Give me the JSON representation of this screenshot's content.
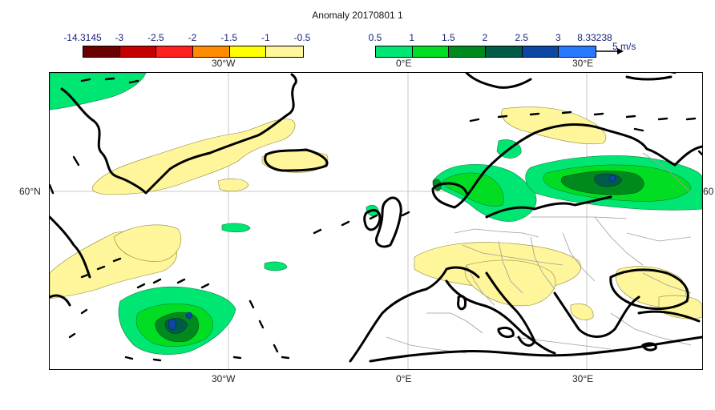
{
  "title": "Anomaly 20170801 1",
  "negative_colorbar": {
    "labels": [
      "-14.3145",
      "-3",
      "-2.5",
      "-2",
      "-1.5",
      "-1",
      "-0.5"
    ],
    "colors": [
      "#6b0000",
      "#c40000",
      "#ff2020",
      "#ff8c00",
      "#ffff00",
      "#fff59a"
    ]
  },
  "positive_colorbar": {
    "labels": [
      "0.5",
      "1",
      "1.5",
      "2",
      "2.5",
      "3",
      "8.33238"
    ],
    "colors": [
      "#00e673",
      "#00dd22",
      "#008a1e",
      "#005c46",
      "#0d47a1",
      "#2979ff"
    ]
  },
  "wind_scale": {
    "label": "5 m/s"
  },
  "axes": {
    "top_ticks": [
      "30°W",
      "0°E",
      "30°E"
    ],
    "bottom_ticks": [
      "30°W",
      "0°E",
      "30°E"
    ],
    "left_tick": "60°N",
    "right_tick": "60"
  },
  "colors": {
    "coast": "#000000",
    "border": "#9e9e9e",
    "grid": "#c8c8c8",
    "neg_light": "#fff59a",
    "pos_light": "#00e673",
    "pos_mid": "#00dd22",
    "pos_dark": "#008a1e",
    "pos_darker": "#005c46",
    "pos_blue": "#0d47a1"
  }
}
